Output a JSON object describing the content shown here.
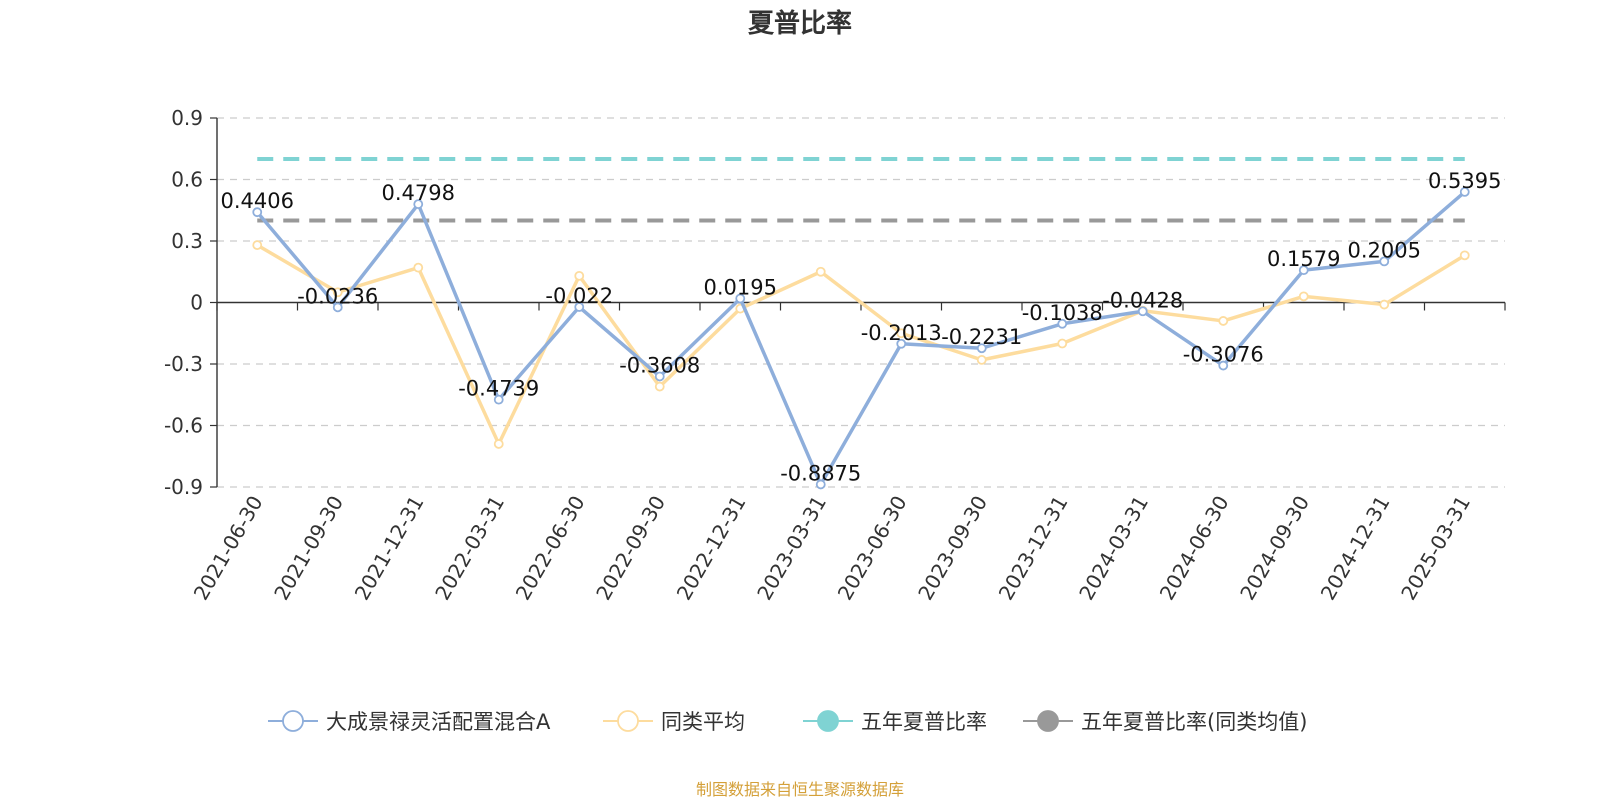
{
  "chart_data": {
    "type": "line",
    "title": "夏普比率",
    "source": "制图数据来自恒生聚源数据库",
    "categories": [
      "2021-06-30",
      "2021-09-30",
      "2021-12-31",
      "2022-03-31",
      "2022-06-30",
      "2022-09-30",
      "2022-12-31",
      "2023-03-31",
      "2023-06-30",
      "2023-09-30",
      "2023-12-31",
      "2024-03-31",
      "2024-06-30",
      "2024-09-30",
      "2024-12-31",
      "2025-03-31"
    ],
    "ylim": [
      -0.9,
      0.9
    ],
    "yticks": [
      0.9,
      0.6,
      0.3,
      0,
      -0.3,
      -0.6,
      -0.9
    ],
    "ytick_labels": [
      "0.9",
      "0.6",
      "0.3",
      "0",
      "-0.3",
      "-0.6",
      "-0.9"
    ],
    "grid": true,
    "legend_position": "bottom",
    "series": [
      {
        "name": "大成景禄灵活配置混合A",
        "color": "#8eaedb",
        "marker": "hollow-circle",
        "values": [
          0.4406,
          -0.0236,
          0.4798,
          -0.4739,
          -0.022,
          -0.3608,
          0.0195,
          -0.8875,
          -0.2013,
          -0.2231,
          -0.1038,
          -0.0428,
          -0.3076,
          0.1579,
          0.2005,
          0.5395
        ],
        "labels": [
          "0.4406",
          "-0.0236",
          "0.4798",
          "-0.4739",
          "-0.022",
          "-0.3608",
          "0.0195",
          "-0.8875",
          "-0.2013",
          "-0.2231",
          "-0.1038",
          "-0.0428",
          "-0.3076",
          "0.1579",
          "0.2005",
          "0.5395"
        ]
      },
      {
        "name": "同类平均",
        "color": "#fddc9e",
        "marker": "hollow-circle",
        "values": [
          0.28,
          0.05,
          0.17,
          -0.69,
          0.13,
          -0.41,
          -0.03,
          0.15,
          -0.15,
          -0.28,
          -0.2,
          -0.04,
          -0.09,
          0.03,
          -0.01,
          0.23
        ]
      },
      {
        "name": "五年夏普比率",
        "color": "#7fd3d3",
        "marker": "filled-circle",
        "style": "dashed",
        "values": [
          0.7,
          0.7,
          0.7,
          0.7,
          0.7,
          0.7,
          0.7,
          0.7,
          0.7,
          0.7,
          0.7,
          0.7,
          0.7,
          0.7,
          0.7,
          0.7
        ]
      },
      {
        "name": "五年夏普比率(同类均值)",
        "color": "#999999",
        "marker": "filled-circle",
        "style": "dashed",
        "values": [
          0.4,
          0.4,
          0.4,
          0.4,
          0.4,
          0.4,
          0.4,
          0.4,
          0.4,
          0.4,
          0.4,
          0.4,
          0.4,
          0.4,
          0.4,
          0.4
        ]
      }
    ]
  }
}
